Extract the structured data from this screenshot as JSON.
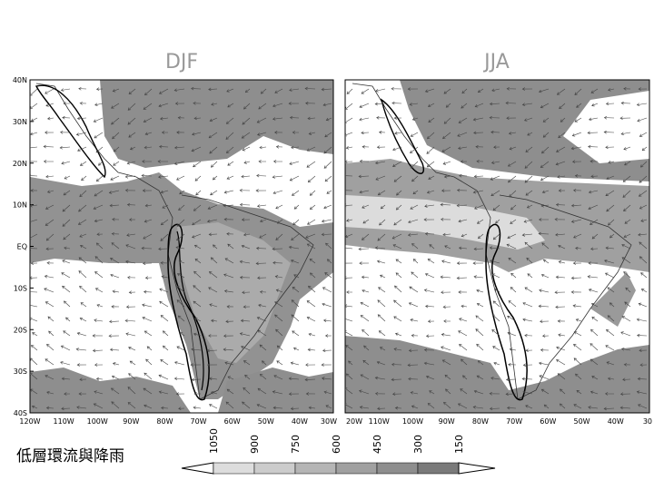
{
  "panels": [
    {
      "title": "DJF",
      "lat_labels": [
        "40N",
        "30N",
        "20N",
        "10N",
        "EQ",
        "10S",
        "20S",
        "30S",
        "40S"
      ],
      "lon_labels": [
        "120W",
        "110W",
        "100W",
        "90W",
        "80W",
        "70W",
        "60W",
        "50W",
        "40W",
        "30W"
      ]
    },
    {
      "title": "JJA",
      "lon_labels": [
        "20W",
        "110W",
        "100W",
        "90W",
        "80W",
        "70W",
        "60W",
        "50W",
        "40W",
        "30"
      ]
    }
  ],
  "colorbar": {
    "labels": [
      "1050",
      "900",
      "750",
      "600",
      "450",
      "300",
      "150"
    ]
  },
  "caption": "低層環流與降雨"
}
